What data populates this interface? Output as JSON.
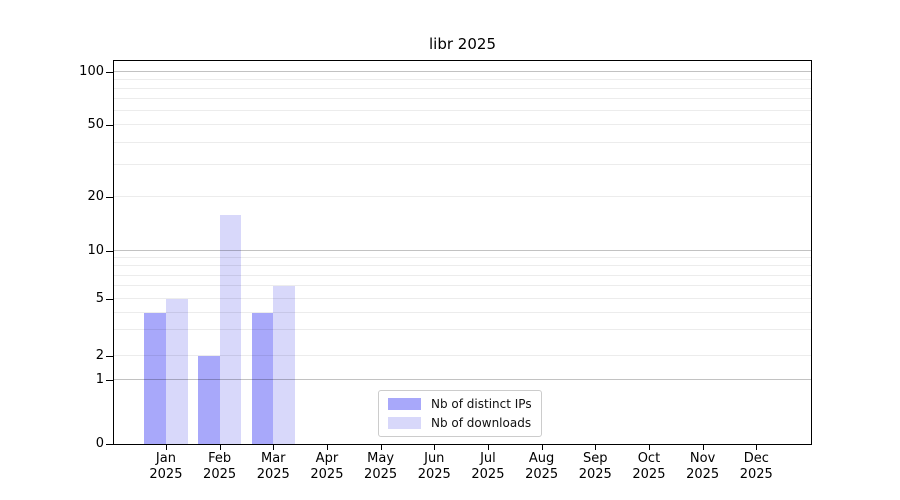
{
  "title": "libr 2025",
  "chart_data": {
    "type": "bar",
    "title": "libr 2025",
    "xlabel": "",
    "ylabel": "",
    "x_year": "2025",
    "categories": [
      "Jan",
      "Feb",
      "Mar",
      "Apr",
      "May",
      "Jun",
      "Jul",
      "Aug",
      "Sep",
      "Oct",
      "Nov",
      "Dec"
    ],
    "series": [
      {
        "name": "Nb of distinct IPs",
        "color": "#a8a8fa",
        "values": [
          4,
          2,
          4,
          0,
          0,
          0,
          0,
          0,
          0,
          0,
          0,
          0
        ]
      },
      {
        "name": "Nb of downloads",
        "color": "#d8d8fa",
        "values": [
          5,
          16,
          6,
          0,
          0,
          0,
          0,
          0,
          0,
          0,
          0,
          0
        ]
      }
    ],
    "y_axis": {
      "scale": "log-like with 0 baseline",
      "ylim_top_value": 115,
      "ticks": [
        {
          "value": 0,
          "frac": 0.0
        },
        {
          "value": 1,
          "frac": 0.166
        },
        {
          "value": 2,
          "frac": 0.231
        },
        {
          "value": 5,
          "frac": 0.379
        },
        {
          "value": 10,
          "frac": 0.504
        },
        {
          "value": 20,
          "frac": 0.644
        },
        {
          "value": 50,
          "frac": 0.8325
        },
        {
          "value": 100,
          "frac": 0.9714
        }
      ],
      "minor_values": [
        3,
        4,
        6,
        7,
        8,
        9,
        30,
        40,
        60,
        70,
        80,
        90
      ],
      "major_grid_values": [
        1,
        10,
        100
      ],
      "grid": true
    },
    "x_layout": {
      "first_center_frac": 0.0745,
      "step_frac": 0.077,
      "bar_width_frac": 0.0312
    },
    "legend": {
      "position": "bottom-center-inside",
      "items": [
        "Nb of distinct IPs",
        "Nb of downloads"
      ]
    },
    "colors": {
      "major_grid": "rgba(0,0,0,0.24)",
      "minor_grid": "rgba(0,0,0,0.075)",
      "spine": "#000000",
      "background": "#ffffff"
    }
  }
}
